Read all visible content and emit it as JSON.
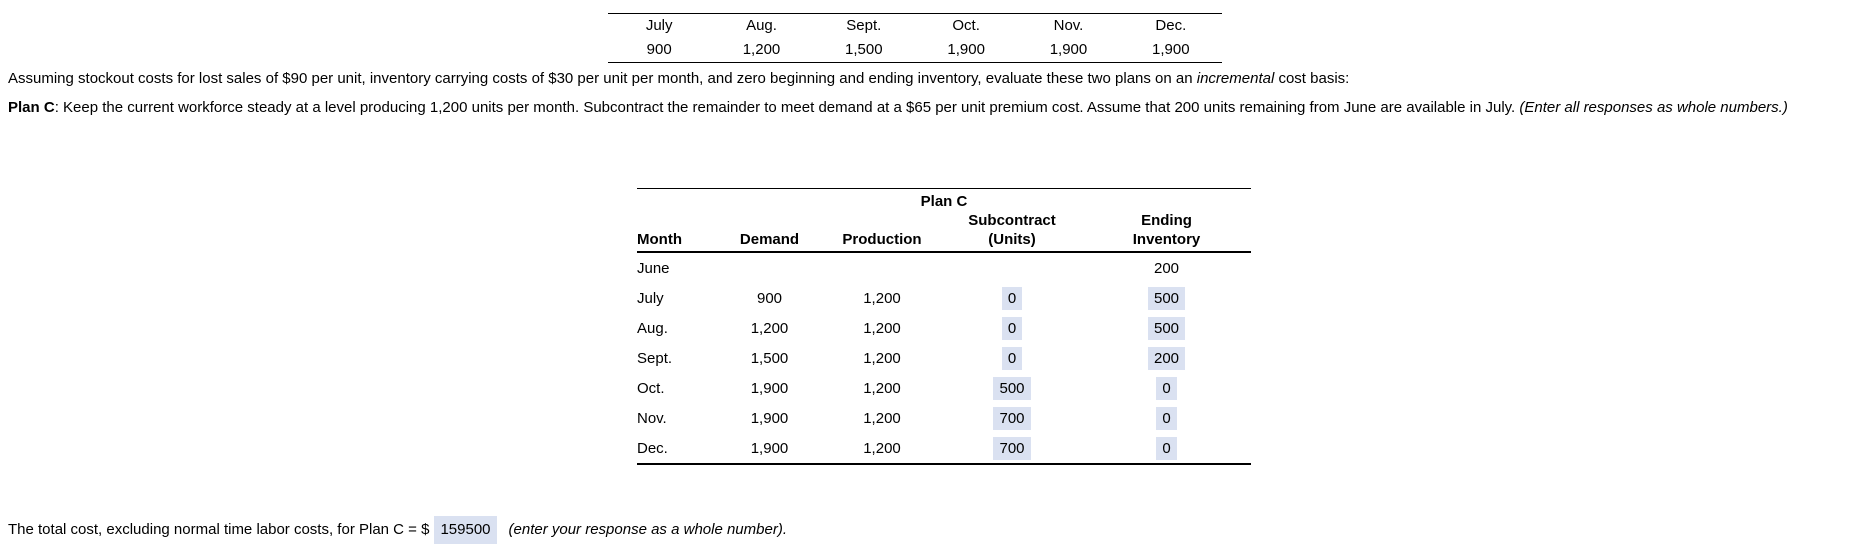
{
  "demand_table": {
    "months": [
      "July",
      "Aug.",
      "Sept.",
      "Oct.",
      "Nov.",
      "Dec."
    ],
    "values": [
      "900",
      "1,200",
      "1,500",
      "1,900",
      "1,900",
      "1,900"
    ]
  },
  "intro": {
    "pre_italic": "Assuming stockout costs for lost sales of $90 per unit, inventory carrying costs of $30 per unit per month, and zero beginning and ending inventory, evaluate these two plans on an ",
    "italic": "incremental",
    "post_italic": " cost basis:"
  },
  "plan_c_paragraph": {
    "bold": "Plan C",
    "text": ": Keep the current workforce steady at a level producing 1,200 units per month. Subcontract the remainder to meet demand at a $65 per unit premium cost. Assume that 200 units remaining from June are available in July. ",
    "italic": "(Enter all responses as whole numbers.)"
  },
  "plan_c_table": {
    "title": "Plan C",
    "headers": {
      "month": "Month",
      "demand": "Demand",
      "production": "Production",
      "subcontract_line1": "Subcontract",
      "subcontract_line2": "(Units)",
      "ending_line1": "Ending",
      "ending_line2": "Inventory"
    },
    "rows": [
      {
        "month": "June",
        "demand": "",
        "production": "",
        "subcontract": "",
        "ending": "200",
        "subcontract_is_input": false,
        "ending_is_input": false
      },
      {
        "month": "July",
        "demand": "900",
        "production": "1,200",
        "subcontract": "0",
        "ending": "500",
        "subcontract_is_input": true,
        "ending_is_input": true
      },
      {
        "month": "Aug.",
        "demand": "1,200",
        "production": "1,200",
        "subcontract": "0",
        "ending": "500",
        "subcontract_is_input": true,
        "ending_is_input": true
      },
      {
        "month": "Sept.",
        "demand": "1,500",
        "production": "1,200",
        "subcontract": "0",
        "ending": "200",
        "subcontract_is_input": true,
        "ending_is_input": true
      },
      {
        "month": "Oct.",
        "demand": "1,900",
        "production": "1,200",
        "subcontract": "500",
        "ending": "0",
        "subcontract_is_input": true,
        "ending_is_input": true
      },
      {
        "month": "Nov.",
        "demand": "1,900",
        "production": "1,200",
        "subcontract": "700",
        "ending": "0",
        "subcontract_is_input": true,
        "ending_is_input": true
      },
      {
        "month": "Dec.",
        "demand": "1,900",
        "production": "1,200",
        "subcontract": "700",
        "ending": "0",
        "subcontract_is_input": true,
        "ending_is_input": true
      }
    ]
  },
  "total_line": {
    "text_before": "The total cost, excluding normal time labor costs, for Plan C = $",
    "value": "159500",
    "text_after": "(enter your response as a whole number)."
  },
  "colors": {
    "answer_highlight": "#dae1f1",
    "table_rule": "#000000",
    "text": "#000000",
    "background": "#ffffff"
  }
}
